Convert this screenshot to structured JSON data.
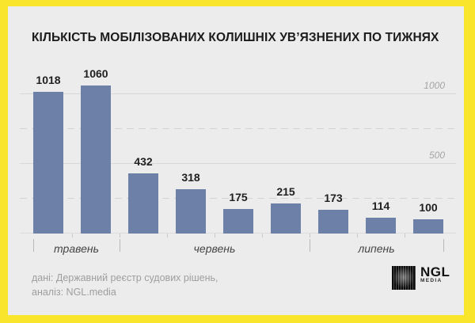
{
  "title": "КІЛЬКІСТЬ МОБІЛІЗОВАНИХ КОЛИШНІХ УВ’ЯЗНЕНИХ ПО ТИЖНЯХ",
  "chart_data": {
    "type": "bar",
    "title": "КІЛЬКІСТЬ МОБІЛІЗОВАНИХ КОЛИШНІХ УВ’ЯЗНЕНИХ ПО ТИЖНЯХ",
    "values": [
      1018,
      1060,
      432,
      318,
      175,
      215,
      173,
      114,
      100
    ],
    "month_groups": [
      {
        "label": "травень",
        "bars": 2
      },
      {
        "label": "червень",
        "bars": 4
      },
      {
        "label": "липень",
        "bars": 3
      }
    ],
    "gridlines": [
      {
        "value": 1000,
        "style": "solid",
        "label": "1000"
      },
      {
        "value": 750,
        "style": "dashed",
        "label": ""
      },
      {
        "value": 500,
        "style": "solid",
        "label": "500"
      },
      {
        "value": 250,
        "style": "dashed",
        "label": ""
      }
    ],
    "xlabel": "",
    "ylabel": "",
    "ylim": [
      0,
      1100
    ],
    "legend": "none",
    "bar_color": "#6d80a7"
  },
  "footer": {
    "line1": "дані: Державний реєстр судових рішень,",
    "line2": "аналіз: NGL.media"
  },
  "logo": {
    "name": "NGL",
    "sub": "MEDIA"
  },
  "colors": {
    "frame_yellow": "#f8e52c",
    "card_background": "#ececec",
    "bar": "#6d80a7",
    "title_text": "#1b1b1b",
    "grid_label": "#a5a5a5",
    "month_label": "#454545",
    "footer_text": "#9e9e9e"
  }
}
